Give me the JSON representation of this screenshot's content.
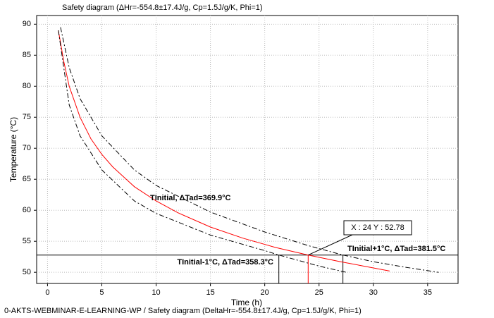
{
  "chart_data": {
    "type": "line",
    "title": "Safety diagram (ΔHr=-554.8±17.4J/g, Cp=1.5J/g/K, Phi=1)",
    "footer": "0-AKTS-WEBMINAR-E-LEARNING-WP / Safety diagram (DeltaHr=-554.8±17.4J/g, Cp=1.5J/g/K, Phi=1)",
    "x_label": "Time (h)",
    "y_label": "Temperature (°C)",
    "xlim": [
      -1,
      37.8
    ],
    "ylim": [
      48.2,
      91.4
    ],
    "xticks": [
      0,
      5,
      10,
      15,
      20,
      25,
      30,
      35
    ],
    "yticks": [
      50,
      55,
      60,
      65,
      70,
      75,
      80,
      85,
      90
    ],
    "grid": true,
    "series": [
      {
        "name": "TInitial, ΔTad=369.9°C",
        "color": "#ff0000",
        "dash": "solid",
        "x": [
          1,
          1.5,
          2,
          3,
          4,
          5,
          6,
          8,
          10,
          12,
          15,
          18,
          21,
          24,
          27,
          30,
          31.5
        ],
        "values": [
          89,
          84,
          80,
          75,
          71.5,
          69,
          67,
          63.8,
          61.5,
          59.6,
          57.3,
          55.5,
          54,
          52.78,
          51.7,
          50.7,
          50.2
        ]
      },
      {
        "name": "TInitial+1°C, ΔTad=381.5°C",
        "color": "#000000",
        "dash": "dashdot",
        "x": [
          1.2,
          2,
          3,
          5,
          8,
          10,
          15,
          20,
          24,
          27.2,
          30,
          33,
          36
        ],
        "values": [
          89.5,
          83,
          78,
          72,
          66.5,
          64,
          59.7,
          56.5,
          54.3,
          52.78,
          51.7,
          50.8,
          50
        ]
      },
      {
        "name": "TInitial-1°C, ΔTad=358.3°C",
        "color": "#000000",
        "dash": "dashdot",
        "x": [
          1,
          2,
          3,
          5,
          8,
          10,
          15,
          20,
          21.3,
          25,
          27.5
        ],
        "values": [
          89,
          77,
          72,
          66.5,
          61.5,
          59.5,
          56,
          53.5,
          52.78,
          51,
          50
        ]
      }
    ],
    "crosshair": {
      "x": 24,
      "y": 52.78,
      "label": "X : 24 Y : 52.78"
    },
    "intersections": [
      {
        "x": 21.3,
        "y": 52.78
      },
      {
        "x": 27.2,
        "y": 52.78
      }
    ]
  }
}
